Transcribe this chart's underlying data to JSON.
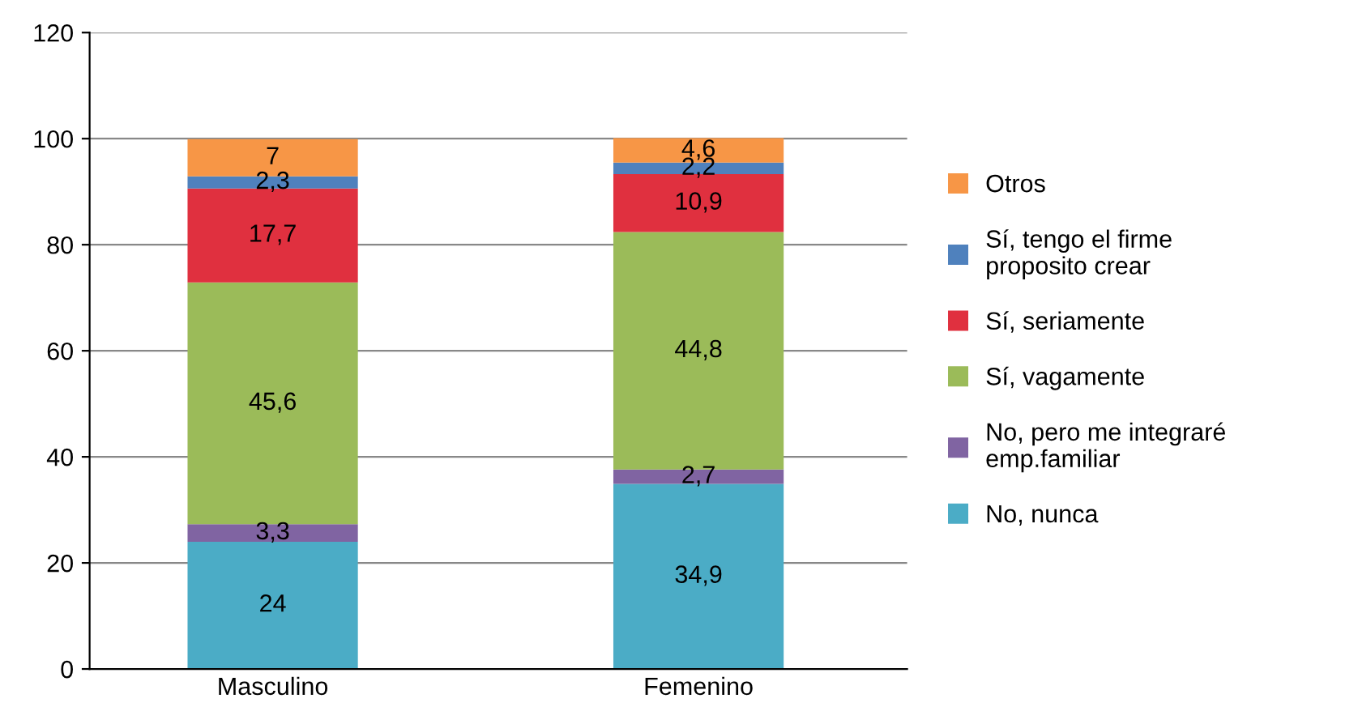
{
  "chart_data": {
    "type": "bar",
    "stacked": true,
    "categories": [
      "Masculino",
      "Femenino"
    ],
    "ylim": [
      0,
      120
    ],
    "yticks": [
      0,
      20,
      40,
      60,
      80,
      100,
      120
    ],
    "grid": "y",
    "legend": "right",
    "series": [
      {
        "name": "No, nunca",
        "color": "#4bacc6",
        "values": [
          24,
          34.9
        ],
        "value_labels": [
          "24",
          "34,9"
        ]
      },
      {
        "name": "No, pero me integraré\nemp.familiar",
        "color": "#8064a2",
        "values": [
          3.3,
          2.7
        ],
        "value_labels": [
          "3,3",
          "2,7"
        ]
      },
      {
        "name": "Sí, vagamente",
        "color": "#9bbb59",
        "values": [
          45.6,
          44.8
        ],
        "value_labels": [
          "45,6",
          "44,8"
        ]
      },
      {
        "name": "Sí, seriamente",
        "color": "#e0303f",
        "values": [
          17.7,
          10.9
        ],
        "value_labels": [
          "17,7",
          "10,9"
        ]
      },
      {
        "name": "Sí, tengo el firme\nproposito crear",
        "color": "#4f81bd",
        "values": [
          2.3,
          2.2
        ],
        "value_labels": [
          "2,3",
          "2,2"
        ]
      },
      {
        "name": "Otros",
        "color": "#f79646",
        "values": [
          7,
          4.6
        ],
        "value_labels": [
          "7",
          "4,6"
        ]
      }
    ]
  }
}
